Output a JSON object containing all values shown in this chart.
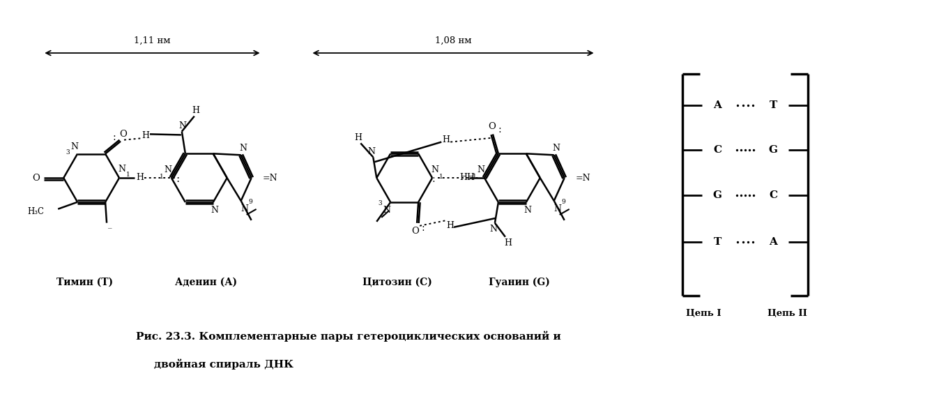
{
  "title_line1": "Рис. 23.3. Комплементарные пары гетероциклических оснований и",
  "title_line2": "двойная спираль ДНК",
  "label_thymine": "Тимин (Т)",
  "label_adenine": "Аденин (А)",
  "label_cytosine": "Цитозин (С)",
  "label_guanine": "Гуанин (G)",
  "label_chain1": "Цепь I",
  "label_chain2": "Цепь II",
  "arrow1_label": "1,11 нм",
  "arrow2_label": "1,08 нм",
  "pair_left": [
    "A",
    "C",
    "G",
    "T"
  ],
  "pair_right": [
    "T",
    "G",
    "C",
    "A"
  ],
  "pair_dots": [
    4,
    5,
    5,
    4
  ],
  "bg_color": "#ffffff",
  "text_color": "#000000"
}
